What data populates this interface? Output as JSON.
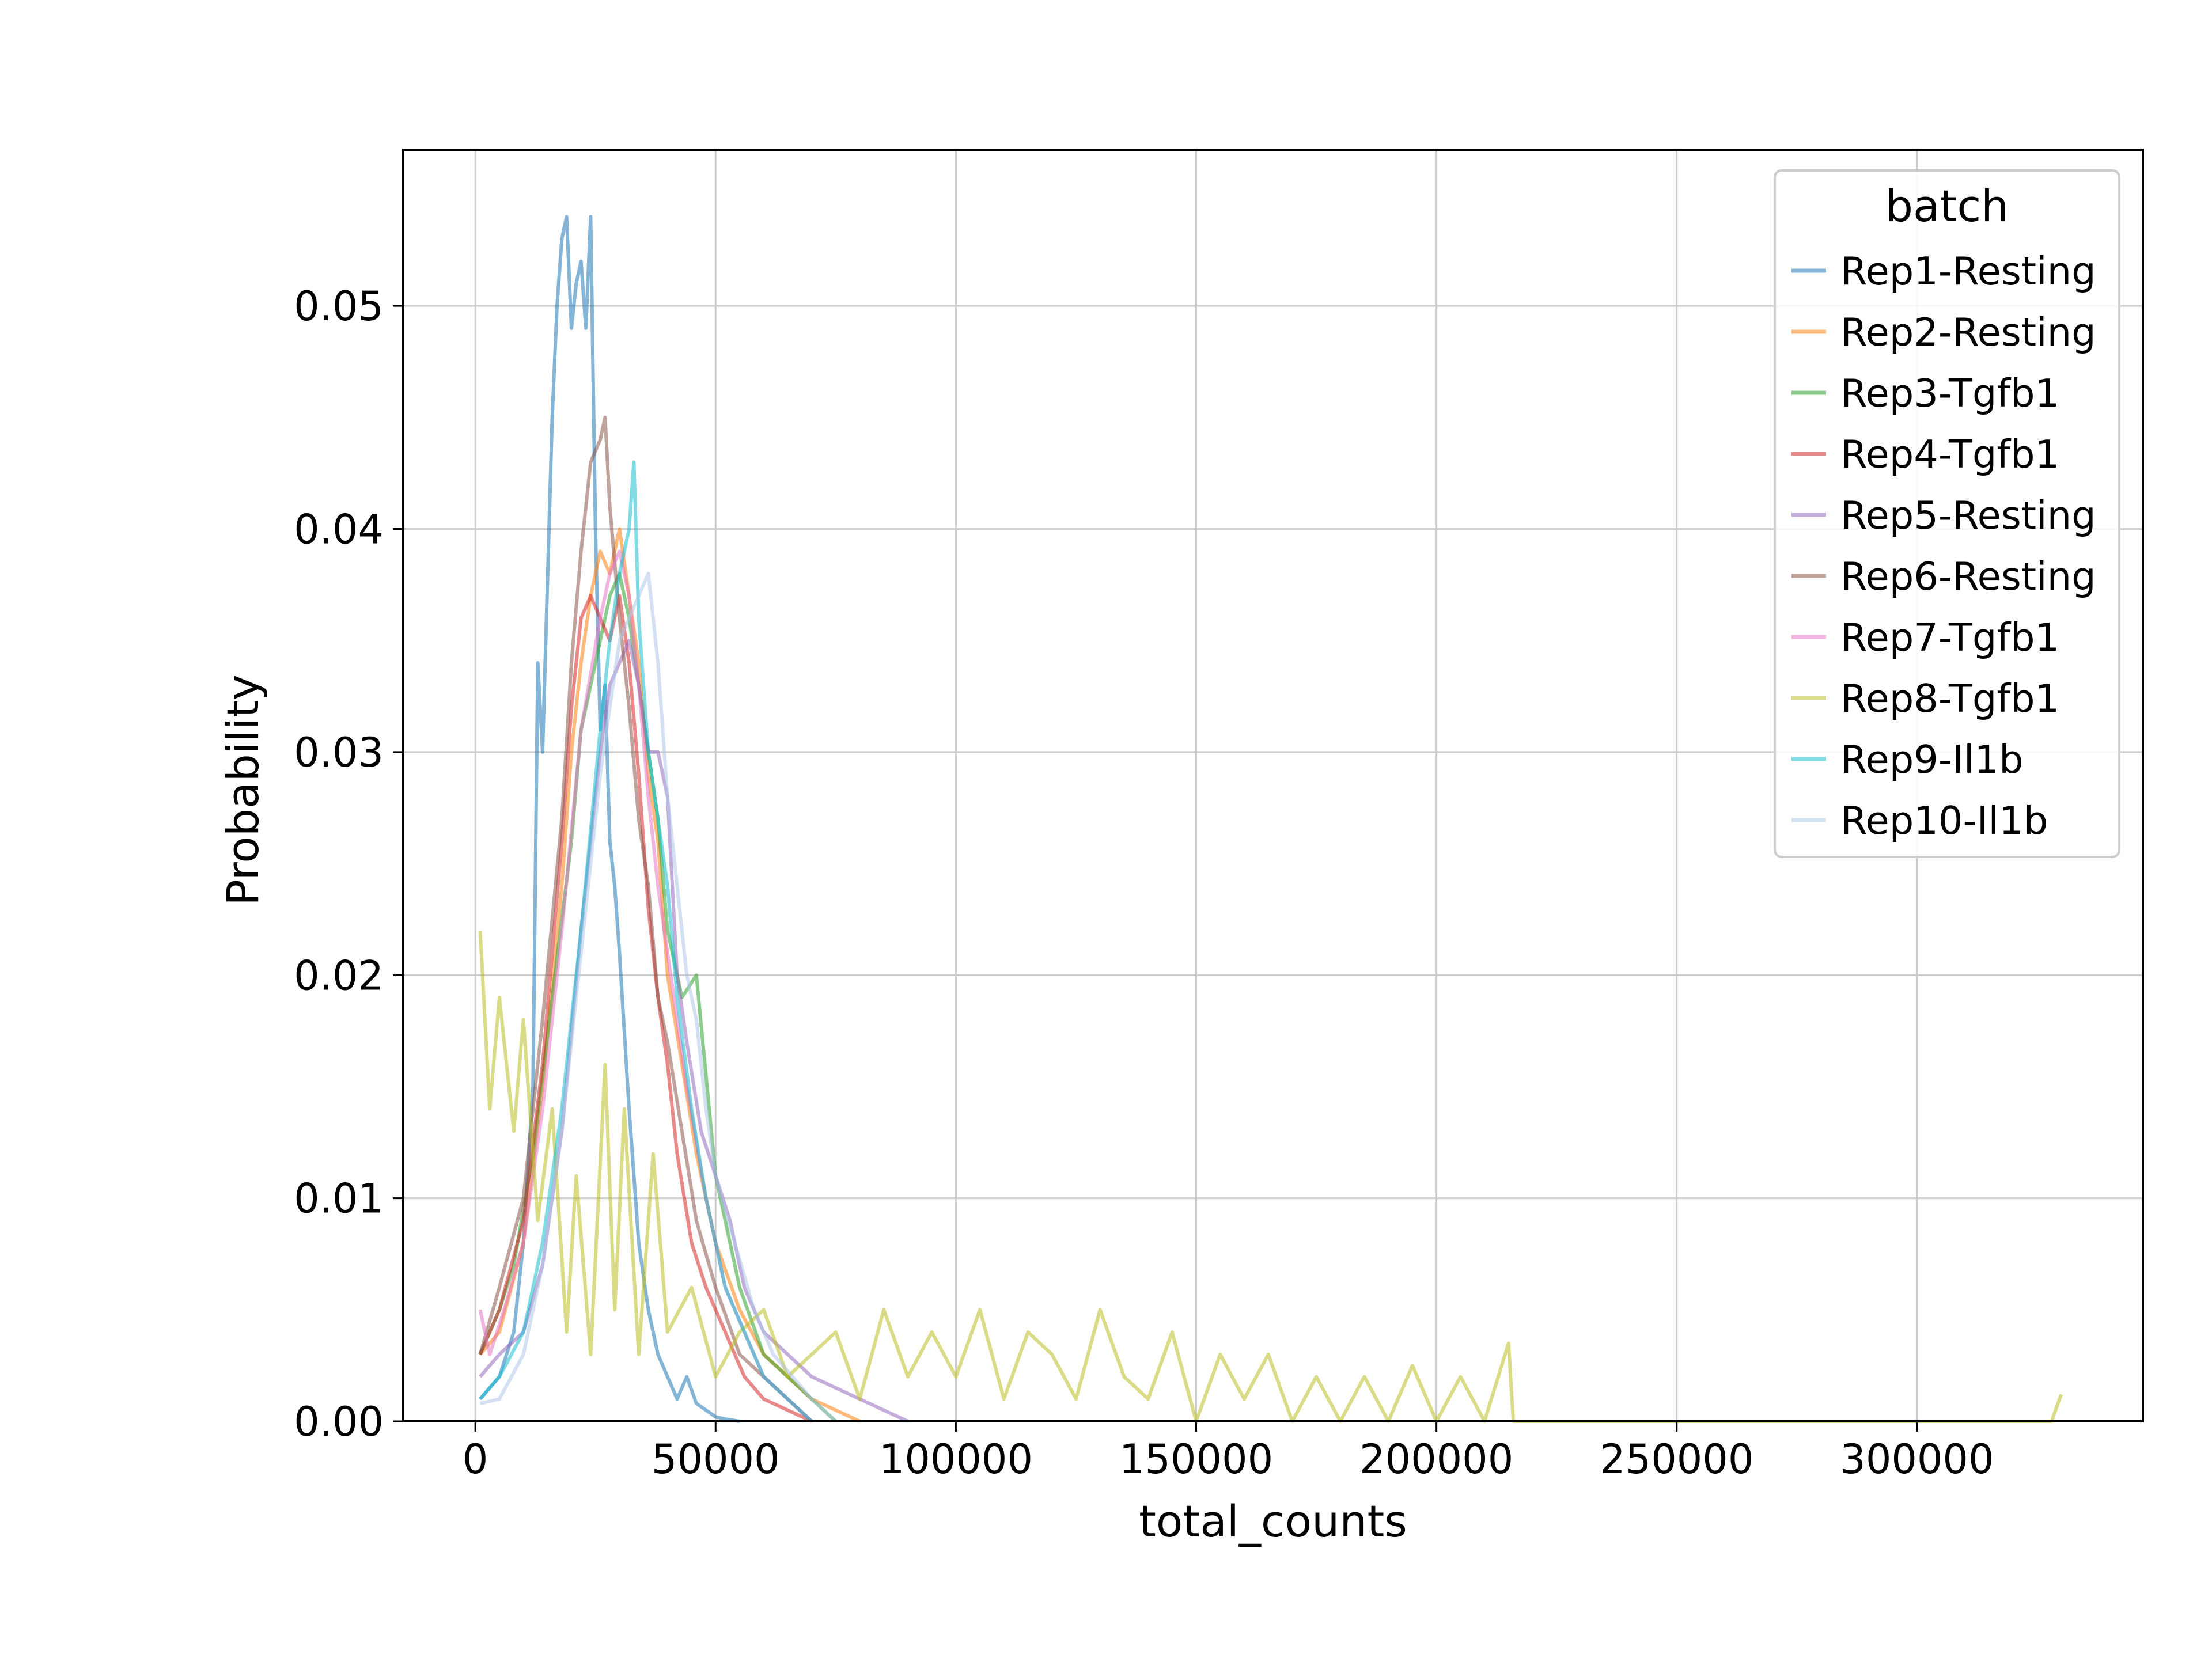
{
  "chart_data": {
    "type": "line",
    "title": "",
    "xlabel": "total_counts",
    "ylabel": "Probability",
    "xlim": [
      -15000,
      347000
    ],
    "ylim": [
      0,
      0.057
    ],
    "xticks": [
      0,
      50000,
      100000,
      150000,
      200000,
      250000,
      300000
    ],
    "xtick_labels": [
      "0",
      "50000",
      "100000",
      "150000",
      "200000",
      "250000",
      "300000"
    ],
    "yticks": [
      0.0,
      0.01,
      0.02,
      0.03,
      0.04,
      0.05
    ],
    "ytick_labels": [
      "0.00",
      "0.01",
      "0.02",
      "0.03",
      "0.04",
      "0.05"
    ],
    "grid": true,
    "legend_title": "batch",
    "legend_position": "top-right",
    "series": [
      {
        "name": "Rep1-Resting",
        "color": "#1f77b4",
        "x": [
          1000,
          5000,
          8000,
          10000,
          12000,
          13000,
          14000,
          16000,
          17000,
          18000,
          19000,
          20000,
          21000,
          22000,
          23000,
          24000,
          25000,
          26000,
          27000,
          28000,
          29000,
          30000,
          32000,
          34000,
          36000,
          38000,
          40000,
          42000,
          44000,
          46000,
          48000,
          50000,
          52000,
          55000
        ],
        "y": [
          0.001,
          0.002,
          0.004,
          0.008,
          0.015,
          0.034,
          0.03,
          0.045,
          0.05,
          0.053,
          0.054,
          0.049,
          0.051,
          0.052,
          0.049,
          0.054,
          0.04,
          0.031,
          0.033,
          0.026,
          0.024,
          0.021,
          0.014,
          0.008,
          0.005,
          0.003,
          0.002,
          0.001,
          0.002,
          0.0008,
          0.0005,
          0.0002,
          0.0001,
          0.0
        ]
      },
      {
        "name": "Rep2-Resting",
        "color": "#ff7f0e",
        "x": [
          1000,
          5000,
          10000,
          14000,
          18000,
          20000,
          22000,
          24000,
          26000,
          28000,
          30000,
          32000,
          34000,
          36000,
          38000,
          40000,
          43000,
          46000,
          50000,
          55000,
          60000,
          65000,
          70000,
          75000,
          80000
        ],
        "y": [
          0.003,
          0.004,
          0.008,
          0.015,
          0.024,
          0.03,
          0.034,
          0.037,
          0.039,
          0.038,
          0.04,
          0.037,
          0.034,
          0.029,
          0.026,
          0.02,
          0.016,
          0.012,
          0.008,
          0.005,
          0.003,
          0.002,
          0.001,
          0.0005,
          0.0
        ]
      },
      {
        "name": "Rep3-Tgfb1",
        "color": "#2ca02c",
        "x": [
          1000,
          5000,
          8000,
          12000,
          16000,
          20000,
          22000,
          24000,
          26000,
          28000,
          30000,
          32000,
          34000,
          36000,
          38000,
          40000,
          43000,
          46000,
          50000,
          55000,
          60000,
          65000,
          70000,
          75000
        ],
        "y": [
          0.003,
          0.005,
          0.007,
          0.012,
          0.019,
          0.026,
          0.031,
          0.033,
          0.035,
          0.037,
          0.038,
          0.036,
          0.033,
          0.03,
          0.027,
          0.022,
          0.019,
          0.02,
          0.011,
          0.006,
          0.003,
          0.002,
          0.001,
          0.0
        ]
      },
      {
        "name": "Rep4-Tgfb1",
        "color": "#d62728",
        "x": [
          1000,
          5000,
          10000,
          14000,
          18000,
          20000,
          22000,
          24000,
          26000,
          28000,
          30000,
          32000,
          34000,
          36000,
          38000,
          40000,
          42000,
          45000,
          48000,
          52000,
          56000,
          60000,
          65000,
          70000
        ],
        "y": [
          0.003,
          0.005,
          0.009,
          0.016,
          0.026,
          0.032,
          0.036,
          0.037,
          0.036,
          0.035,
          0.037,
          0.034,
          0.029,
          0.023,
          0.019,
          0.016,
          0.012,
          0.008,
          0.006,
          0.004,
          0.002,
          0.001,
          0.0005,
          0.0
        ]
      },
      {
        "name": "Rep5-Resting",
        "color": "#9467bd",
        "x": [
          1000,
          5000,
          10000,
          14000,
          18000,
          22000,
          26000,
          28000,
          30000,
          32000,
          34000,
          36000,
          38000,
          40000,
          42000,
          44000,
          47000,
          50000,
          53000,
          56000,
          60000,
          65000,
          70000,
          80000,
          90000
        ],
        "y": [
          0.002,
          0.003,
          0.004,
          0.007,
          0.013,
          0.022,
          0.03,
          0.033,
          0.034,
          0.035,
          0.033,
          0.03,
          0.03,
          0.028,
          0.02,
          0.017,
          0.013,
          0.011,
          0.009,
          0.006,
          0.004,
          0.003,
          0.002,
          0.001,
          0.0
        ]
      },
      {
        "name": "Rep6-Resting",
        "color": "#8c564b",
        "x": [
          1000,
          5000,
          10000,
          14000,
          18000,
          20000,
          22000,
          24000,
          26000,
          27000,
          28000,
          30000,
          32000,
          34000,
          36000,
          38000,
          40000,
          43000,
          46000,
          50000,
          55000,
          60000,
          65000,
          70000
        ],
        "y": [
          0.003,
          0.006,
          0.01,
          0.018,
          0.027,
          0.034,
          0.039,
          0.043,
          0.044,
          0.045,
          0.041,
          0.036,
          0.032,
          0.027,
          0.024,
          0.019,
          0.017,
          0.013,
          0.009,
          0.006,
          0.003,
          0.002,
          0.001,
          0.0
        ]
      },
      {
        "name": "Rep7-Tgfb1",
        "color": "#e377c2",
        "x": [
          1000,
          3000,
          6000,
          10000,
          14000,
          18000,
          22000,
          26000,
          28000,
          30000,
          32000,
          34000,
          36000,
          38000,
          40000,
          44000,
          48000,
          52000,
          56000,
          60000,
          65000,
          70000
        ],
        "y": [
          0.005,
          0.003,
          0.005,
          0.008,
          0.014,
          0.022,
          0.031,
          0.036,
          0.038,
          0.039,
          0.037,
          0.033,
          0.028,
          0.024,
          0.021,
          0.015,
          0.01,
          0.006,
          0.004,
          0.002,
          0.001,
          0.0
        ]
      },
      {
        "name": "Rep8-Tgfb1",
        "color": "#bcbd22",
        "x": [
          1000,
          3000,
          5000,
          8000,
          10000,
          13000,
          16000,
          19000,
          21000,
          24000,
          27000,
          29000,
          31000,
          34000,
          37000,
          40000,
          45000,
          50000,
          55000,
          60000,
          65000,
          70000,
          75000,
          80000,
          85000,
          90000,
          95000,
          100000,
          105000,
          110000,
          115000,
          120000,
          125000,
          130000,
          135000,
          140000,
          145000,
          150000,
          155000,
          160000,
          165000,
          170000,
          175000,
          180000,
          185000,
          190000,
          195000,
          200000,
          205000,
          210000,
          215000,
          216000,
          230000,
          260000,
          300000,
          328000,
          330000
        ],
        "y": [
          0.022,
          0.014,
          0.019,
          0.013,
          0.018,
          0.009,
          0.014,
          0.004,
          0.011,
          0.003,
          0.016,
          0.005,
          0.014,
          0.003,
          0.012,
          0.004,
          0.006,
          0.002,
          0.004,
          0.005,
          0.002,
          0.003,
          0.004,
          0.001,
          0.005,
          0.002,
          0.004,
          0.002,
          0.005,
          0.001,
          0.004,
          0.003,
          0.001,
          0.005,
          0.002,
          0.001,
          0.004,
          0.0,
          0.003,
          0.001,
          0.003,
          0.0,
          0.002,
          0.0,
          0.002,
          0.0,
          0.0025,
          0.0,
          0.002,
          0.0,
          0.0035,
          0.0,
          0.0,
          0.0,
          0.0,
          0.0,
          0.0012
        ]
      },
      {
        "name": "Rep9-Il1b",
        "color": "#17becf",
        "x": [
          1000,
          5000,
          10000,
          14000,
          18000,
          22000,
          26000,
          28000,
          30000,
          32000,
          33000,
          34000,
          36000,
          38000,
          40000,
          42000,
          45000,
          48000,
          52000,
          56000,
          60000,
          65000,
          70000
        ],
        "y": [
          0.001,
          0.002,
          0.004,
          0.008,
          0.014,
          0.022,
          0.031,
          0.035,
          0.038,
          0.04,
          0.043,
          0.036,
          0.03,
          0.027,
          0.024,
          0.019,
          0.014,
          0.01,
          0.006,
          0.004,
          0.002,
          0.001,
          0.0
        ]
      },
      {
        "name": "Rep10-Il1b",
        "color": "#aec7e8",
        "x": [
          1000,
          5000,
          10000,
          14000,
          18000,
          22000,
          26000,
          30000,
          34000,
          36000,
          38000,
          40000,
          42000,
          44000,
          46000,
          48000,
          50000,
          54000,
          58000,
          62000,
          66000,
          70000,
          75000
        ],
        "y": [
          0.0008,
          0.001,
          0.003,
          0.007,
          0.013,
          0.021,
          0.029,
          0.035,
          0.037,
          0.038,
          0.034,
          0.028,
          0.024,
          0.02,
          0.018,
          0.014,
          0.011,
          0.008,
          0.005,
          0.003,
          0.002,
          0.001,
          0.0
        ]
      }
    ]
  }
}
